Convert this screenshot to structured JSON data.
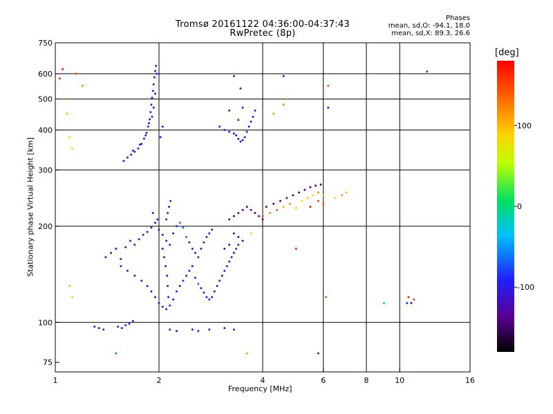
{
  "title_line1": "Tromsø 20161122 04:36:00-04:37:43",
  "title_line2": "RwPretec (8p)",
  "phases": {
    "heading": "Phases",
    "line_o": "mean, sd,O: -94.1, 18.0",
    "line_x": "mean, sd,X:  89.3, 26.6"
  },
  "colorbar": {
    "unit": "[deg]",
    "ticks": [
      "100",
      "0",
      "-100"
    ],
    "tick_values": [
      100,
      0,
      -100
    ],
    "range": [
      -180,
      180
    ],
    "colors": [
      "#000000",
      "#5a0090",
      "#2020ff",
      "#00c0ff",
      "#00e060",
      "#c0ff00",
      "#ffd000",
      "#ff6000",
      "#ff0000"
    ]
  },
  "chart_data": {
    "type": "scatter",
    "title": "Tromsø 20161122 04:36:00-04:37:43",
    "subtitle": "RwPretec (8p)",
    "xlabel": "Frequency [MHz]",
    "ylabel": "Stationary phase Virtual Height [km]",
    "x_scale": "log",
    "y_scale": "log",
    "xlim": [
      1,
      16
    ],
    "ylim": [
      70,
      750
    ],
    "x_ticks": [
      1,
      2,
      4,
      6,
      8,
      10,
      16
    ],
    "x_tick_labels": [
      "1",
      "2",
      "4",
      "6",
      "8",
      "10",
      "16"
    ],
    "x_grid": [
      2,
      4,
      6,
      8,
      10
    ],
    "y_ticks": [
      75,
      100,
      200,
      300,
      400,
      500,
      600,
      750
    ],
    "y_tick_labels": [
      "75",
      "100",
      "200",
      "300",
      "400",
      "500",
      "600",
      "750"
    ],
    "y_grid": [
      100,
      200,
      300,
      400,
      500,
      600
    ],
    "grid": true,
    "color_variable": "phase [deg]",
    "series": [
      {
        "points": [
          [
            1.58,
            320,
            -100
          ],
          [
            1.62,
            328,
            -100
          ],
          [
            1.66,
            335,
            -100
          ],
          [
            1.7,
            342,
            -100
          ],
          [
            1.74,
            350,
            -100
          ],
          [
            1.78,
            362,
            -100
          ],
          [
            1.81,
            376,
            -100
          ],
          [
            1.84,
            392,
            -100
          ],
          [
            1.86,
            410,
            -100
          ],
          [
            1.88,
            432,
            -100
          ],
          [
            1.89,
            455,
            -100
          ],
          [
            1.9,
            480,
            -100
          ],
          [
            1.91,
            505,
            -100
          ],
          [
            1.92,
            530,
            -100
          ],
          [
            1.93,
            556,
            -100
          ],
          [
            1.94,
            585,
            -100
          ],
          [
            1.95,
            612,
            -100
          ],
          [
            1.96,
            635,
            -100
          ],
          [
            1.97,
            600,
            -100
          ],
          [
            1.95,
            520,
            -100
          ],
          [
            1.93,
            470,
            -100
          ],
          [
            1.91,
            440,
            -100
          ],
          [
            1.87,
            420,
            -100
          ],
          [
            1.83,
            385,
            -100
          ],
          [
            1.76,
            360,
            -100
          ],
          [
            1.68,
            345,
            -100
          ],
          [
            2.02,
            380,
            -100
          ],
          [
            2.05,
            410,
            -100
          ],
          [
            3.0,
            410,
            -100
          ],
          [
            3.1,
            400,
            -100
          ],
          [
            3.2,
            395,
            -100
          ],
          [
            3.3,
            390,
            -100
          ],
          [
            3.35,
            385,
            -100
          ],
          [
            3.4,
            375,
            -100
          ],
          [
            3.45,
            368,
            -100
          ],
          [
            3.5,
            372,
            -100
          ],
          [
            3.55,
            380,
            -100
          ],
          [
            3.6,
            395,
            -100
          ],
          [
            3.65,
            410,
            -100
          ],
          [
            3.7,
            425,
            -100
          ],
          [
            3.75,
            440,
            -100
          ],
          [
            3.8,
            460,
            -100
          ],
          [
            3.4,
            430,
            -100
          ],
          [
            3.5,
            470,
            -100
          ],
          [
            3.45,
            540,
            -100
          ],
          [
            3.2,
            460,
            -100
          ]
        ]
      },
      {
        "points": [
          [
            1.4,
            160,
            -100
          ],
          [
            1.45,
            165,
            -100
          ],
          [
            1.5,
            170,
            -100
          ],
          [
            1.55,
            158,
            -100
          ],
          [
            1.6,
            172,
            -100
          ],
          [
            1.65,
            180,
            -100
          ],
          [
            1.7,
            175,
            -100
          ],
          [
            1.75,
            182,
            -100
          ],
          [
            1.8,
            188,
            -100
          ],
          [
            1.85,
            192,
            -100
          ],
          [
            1.9,
            198,
            -100
          ],
          [
            1.95,
            205,
            -100
          ],
          [
            2.0,
            195,
            -100
          ],
          [
            2.05,
            188,
            -100
          ],
          [
            2.1,
            180,
            -100
          ],
          [
            2.15,
            175,
            -100
          ],
          [
            2.2,
            190,
            -100
          ],
          [
            2.25,
            200,
            -100
          ],
          [
            2.3,
            205,
            -60
          ],
          [
            2.35,
            198,
            -60
          ],
          [
            2.4,
            185,
            -60
          ],
          [
            2.45,
            178,
            -100
          ],
          [
            2.5,
            170,
            -100
          ],
          [
            2.55,
            165,
            -100
          ],
          [
            2.6,
            160,
            -100
          ],
          [
            2.65,
            170,
            -100
          ],
          [
            2.7,
            178,
            -100
          ],
          [
            2.75,
            185,
            -100
          ],
          [
            2.8,
            190,
            -100
          ],
          [
            2.85,
            195,
            -100
          ],
          [
            1.55,
            150,
            -100
          ],
          [
            1.62,
            145,
            -100
          ],
          [
            1.7,
            140,
            -100
          ],
          [
            1.78,
            135,
            -100
          ],
          [
            1.85,
            130,
            -100
          ],
          [
            1.9,
            125,
            -100
          ],
          [
            1.95,
            120,
            -100
          ],
          [
            2.0,
            115,
            -100
          ],
          [
            2.05,
            112,
            -100
          ],
          [
            2.1,
            110,
            -100
          ],
          [
            2.15,
            113,
            -100
          ],
          [
            2.2,
            118,
            -100
          ],
          [
            2.25,
            125,
            -100
          ],
          [
            2.3,
            130,
            -100
          ],
          [
            2.35,
            135,
            -100
          ],
          [
            2.4,
            140,
            -100
          ],
          [
            2.45,
            145,
            -100
          ],
          [
            2.5,
            150,
            -100
          ],
          [
            2.55,
            138,
            -100
          ],
          [
            2.6,
            132,
            -60
          ],
          [
            2.65,
            128,
            -100
          ],
          [
            2.7,
            124,
            -100
          ],
          [
            2.75,
            120,
            -100
          ],
          [
            2.8,
            118,
            -100
          ],
          [
            2.85,
            120,
            -100
          ],
          [
            2.9,
            125,
            -100
          ],
          [
            2.95,
            130,
            -100
          ],
          [
            3.0,
            135,
            -100
          ],
          [
            3.05,
            140,
            -100
          ],
          [
            3.1,
            145,
            -100
          ],
          [
            3.15,
            150,
            -100
          ],
          [
            3.2,
            155,
            -100
          ],
          [
            3.25,
            160,
            -100
          ],
          [
            3.3,
            165,
            -100
          ],
          [
            3.35,
            170,
            -100
          ],
          [
            3.4,
            175,
            -100
          ],
          [
            2.05,
            170,
            -100
          ],
          [
            2.07,
            160,
            -100
          ],
          [
            2.09,
            150,
            -100
          ],
          [
            2.11,
            140,
            -100
          ],
          [
            2.12,
            130,
            -100
          ],
          [
            2.13,
            120,
            -100
          ],
          [
            2.1,
            210,
            -100
          ],
          [
            2.12,
            220,
            -100
          ],
          [
            2.14,
            230,
            -100
          ],
          [
            2.16,
            240,
            -100
          ],
          [
            1.98,
            210,
            -100
          ],
          [
            1.92,
            220,
            -100
          ]
        ]
      },
      {
        "points": [
          [
            1.3,
            97,
            -100
          ],
          [
            1.34,
            96,
            -100
          ],
          [
            1.38,
            95,
            -100
          ],
          [
            1.52,
            97,
            -100
          ],
          [
            1.56,
            96,
            -100
          ],
          [
            1.6,
            98,
            -100
          ],
          [
            1.64,
            99,
            -100
          ],
          [
            1.68,
            101,
            -100
          ],
          [
            2.15,
            95,
            -100
          ],
          [
            2.25,
            94,
            -100
          ],
          [
            2.5,
            95,
            -100
          ],
          [
            2.6,
            94,
            -100
          ],
          [
            2.8,
            95,
            -100
          ],
          [
            3.1,
            96,
            -100
          ],
          [
            3.3,
            95,
            -100
          ]
        ]
      },
      {
        "points": [
          [
            3.2,
            210,
            -140
          ],
          [
            3.3,
            215,
            -140
          ],
          [
            3.4,
            220,
            -140
          ],
          [
            3.5,
            225,
            -140
          ],
          [
            3.6,
            230,
            -140
          ],
          [
            3.7,
            225,
            -140
          ],
          [
            3.8,
            220,
            -140
          ],
          [
            3.9,
            215,
            -140
          ],
          [
            4.0,
            210,
            -140
          ],
          [
            3.3,
            190,
            -140
          ],
          [
            3.4,
            185,
            -140
          ],
          [
            3.5,
            180,
            -140
          ],
          [
            3.2,
            175,
            -140
          ],
          [
            3.1,
            170,
            -140
          ],
          [
            4.1,
            230,
            -140
          ],
          [
            4.3,
            235,
            -140
          ],
          [
            4.5,
            240,
            -140
          ],
          [
            4.7,
            245,
            -140
          ],
          [
            4.9,
            250,
            -140
          ],
          [
            5.1,
            255,
            -140
          ],
          [
            5.3,
            260,
            -140
          ],
          [
            5.5,
            265,
            -140
          ],
          [
            5.7,
            268,
            -140
          ],
          [
            5.9,
            270,
            -140
          ]
        ]
      },
      {
        "points": [
          [
            4.2,
            220,
            120
          ],
          [
            4.4,
            225,
            140
          ],
          [
            4.6,
            230,
            100
          ],
          [
            4.8,
            235,
            120
          ],
          [
            5.0,
            228,
            90
          ],
          [
            5.2,
            240,
            60
          ],
          [
            5.4,
            245,
            100
          ],
          [
            5.6,
            250,
            80
          ],
          [
            5.8,
            255,
            120
          ],
          [
            6.0,
            250,
            100
          ],
          [
            6.5,
            245,
            80
          ],
          [
            6.8,
            250,
            110
          ],
          [
            7.0,
            255,
            100
          ],
          [
            4.0,
            215,
            150
          ],
          [
            5.5,
            230,
            170
          ],
          [
            5.8,
            240,
            150
          ],
          [
            6.0,
            235,
            140
          ],
          [
            1.03,
            580,
            160
          ],
          [
            1.06,
            500,
            120
          ],
          [
            1.08,
            450,
            100
          ],
          [
            1.1,
            380,
            90
          ],
          [
            1.12,
            350,
            80
          ],
          [
            1.05,
            620,
            170
          ],
          [
            1.15,
            600,
            150
          ],
          [
            1.2,
            550,
            120
          ],
          [
            3.7,
            190,
            80
          ],
          [
            4.3,
            450,
            110
          ],
          [
            4.6,
            480,
            120
          ],
          [
            6.2,
            550,
            140
          ],
          [
            4.7,
            500,
            120
          ],
          [
            5.0,
            170,
            160
          ],
          [
            6.1,
            120,
            140
          ],
          [
            1.1,
            130,
            100
          ],
          [
            1.12,
            120,
            90
          ],
          [
            3.6,
            80,
            110
          ]
        ]
      },
      {
        "points": [
          [
            9.0,
            115,
            -40
          ],
          [
            10.5,
            115,
            -100
          ],
          [
            10.8,
            115,
            -120
          ],
          [
            11.0,
            118,
            150
          ],
          [
            10.6,
            120,
            170
          ],
          [
            12.0,
            610,
            -80
          ],
          [
            1.5,
            80,
            -60
          ],
          [
            5.8,
            80,
            -120
          ],
          [
            3.3,
            590,
            -100
          ],
          [
            4.6,
            590,
            -100
          ],
          [
            6.2,
            470,
            -100
          ]
        ]
      }
    ]
  }
}
